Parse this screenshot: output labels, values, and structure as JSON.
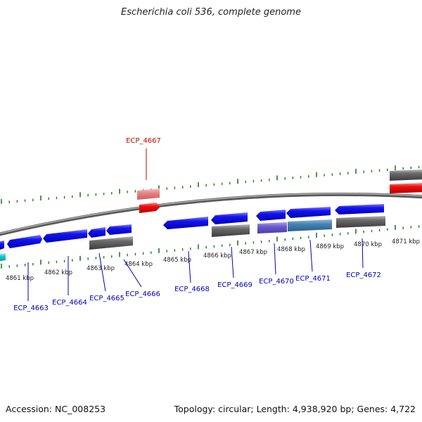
{
  "title": "Escherichia coli 536, complete genome",
  "accession": "Accession: NC_008253",
  "topology": "Topology: circular; Length: 4,938,920 bp; Genes: 4,722",
  "kbp_labels": [
    "4861 kbp",
    "4862 kbp",
    "4863 kbp",
    "4864 kbp",
    "4865 kbp",
    "4866 kbp",
    "4867 kbp",
    "4868 kbp",
    "4869 kbp",
    "4870 kbp",
    "4871 kbp"
  ],
  "gene_labels": {
    "g4663": "ECP_4663",
    "g4664": "ECP_4664",
    "g4665": "ECP_4665",
    "g4666": "ECP_4666",
    "g4667": "ECP_4667",
    "g4668": "ECP_4668",
    "g4669": "ECP_4669",
    "g4670": "ECP_4670",
    "g4671": "ECP_4671",
    "g4672": "ECP_4672"
  },
  "colors": {
    "backbone": "#8a8a8a",
    "tick": "#1f7a1f",
    "gene_forward": "#0a0aee",
    "gene_grey": "#5f5f5f",
    "gene_red": "#ee0a0a",
    "gene_pink": "#e88484",
    "gene_purple": "#6a5acd",
    "gene_steel": "#4682b4",
    "gene_cyan": "#19c8c8",
    "label_blue": "#0000bb",
    "label_red": "#cc0000"
  }
}
